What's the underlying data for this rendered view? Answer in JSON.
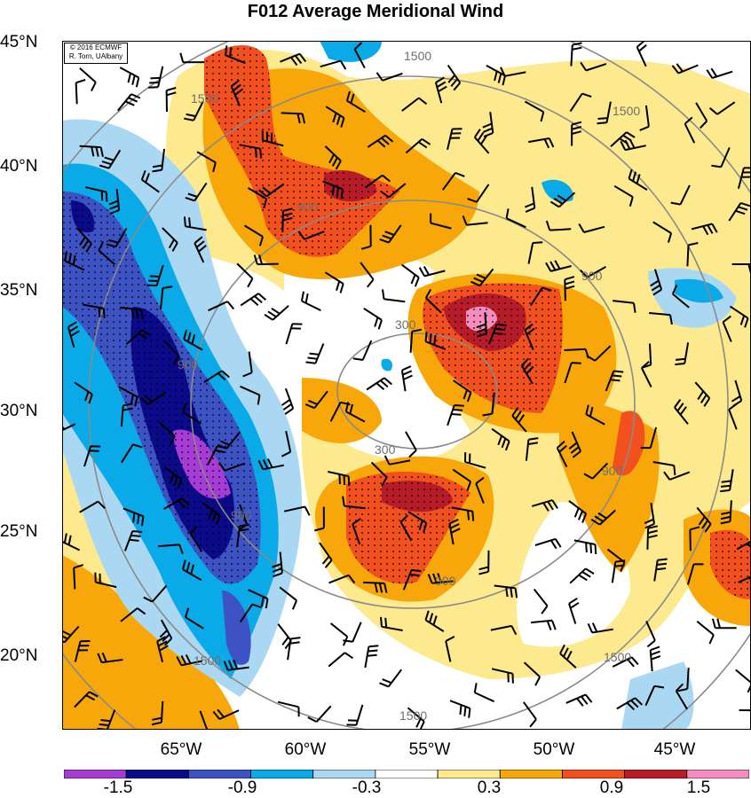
{
  "title": "F012 Average Meridional Wind",
  "credit": {
    "line1": "© 2016 ECMWF",
    "line2": "R. Torn, UAlbany"
  },
  "latitudes": [
    "45°N",
    "40°N",
    "35°N",
    "30°N",
    "25°N",
    "20°N"
  ],
  "longitudes": [
    "65°W",
    "60°W",
    "55°W",
    "50°W",
    "45°W"
  ],
  "contour_labels": {
    "c300": "300",
    "c900": "900",
    "c1500": "1500"
  },
  "colorbar": {
    "labels": [
      "-1.5",
      "-0.9",
      "-0.3",
      "0.3",
      "0.9",
      "1.5"
    ],
    "colors": [
      "#a63bd6",
      "#0a0a8a",
      "#3d53c4",
      "#0aaae8",
      "#aad8f2",
      "#ffffff",
      "#fde98e",
      "#f7a70a",
      "#f2501e",
      "#b81c28",
      "#f58cc0"
    ]
  }
}
